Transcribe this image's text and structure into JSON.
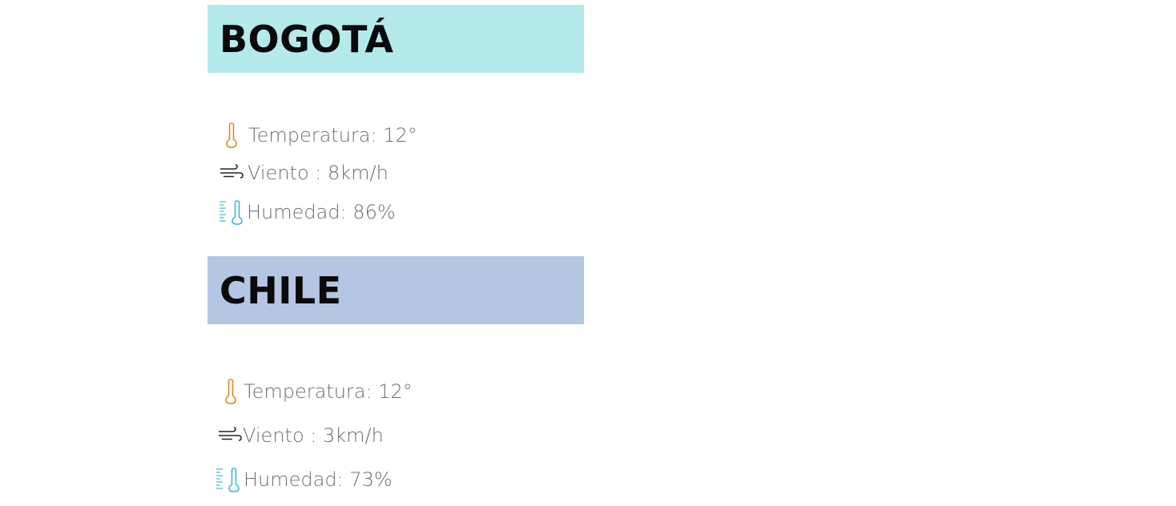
{
  "cities": [
    {
      "name": "BOGOTÁ",
      "header_color": "#b4eaea",
      "temperature": "Temperatura: 12°",
      "wind": "Viento : 8km/h",
      "humidity": "Humedad: 86%"
    },
    {
      "name": "CHILE",
      "header_color": "#b5c6e2",
      "temperature": "Temperatura: 12°",
      "wind": "Viento : 3km/h",
      "humidity": "Humedad: 73%"
    }
  ],
  "icons": {
    "temperature": "thermometer-icon",
    "wind": "wind-icon",
    "humidity": "humidity-thermometer-icon"
  },
  "colors": {
    "thermometer": "#e08a1e",
    "wind": "#222222",
    "humidity": "#3fb8d0",
    "text": "#6e6e6e"
  }
}
